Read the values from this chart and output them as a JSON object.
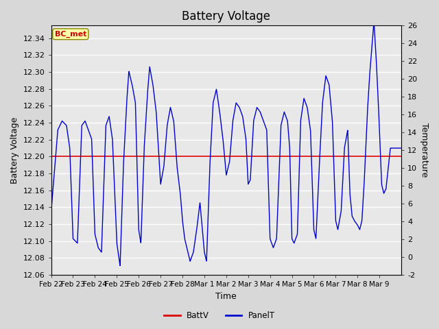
{
  "title": "Battery Voltage",
  "xlabel": "Time",
  "ylabel_left": "Battery Voltage",
  "ylabel_right": "Temperature",
  "ylim_left": [
    12.06,
    12.355
  ],
  "ylim_right": [
    -2,
    26
  ],
  "yticks_left": [
    12.06,
    12.08,
    12.1,
    12.12,
    12.14,
    12.16,
    12.18,
    12.2,
    12.22,
    12.24,
    12.26,
    12.28,
    12.3,
    12.32,
    12.34
  ],
  "yticks_right": [
    -2,
    0,
    2,
    4,
    6,
    8,
    10,
    12,
    14,
    16,
    18,
    20,
    22,
    24,
    26
  ],
  "xtick_labels": [
    "Feb 22",
    "Feb 23",
    "Feb 24",
    "Feb 25",
    "Feb 26",
    "Feb 27",
    "Feb 28",
    "Mar 1",
    "Mar 2",
    "Mar 3",
    "Mar 4",
    "Mar 5",
    "Mar 6",
    "Mar 7",
    "Mar 8",
    "Mar 9"
  ],
  "battv_value": 12.2,
  "battv_color": "#dd0000",
  "panelt_color": "#0000cc",
  "background_color": "#d8d8d8",
  "plot_bg_color": "#e8e8e8",
  "grid_color": "#ffffff",
  "annotation_text": "BC_met",
  "annotation_color": "#cc0000",
  "annotation_bg": "#ffffaa",
  "title_fontsize": 12,
  "axis_fontsize": 9,
  "tick_fontsize": 8
}
